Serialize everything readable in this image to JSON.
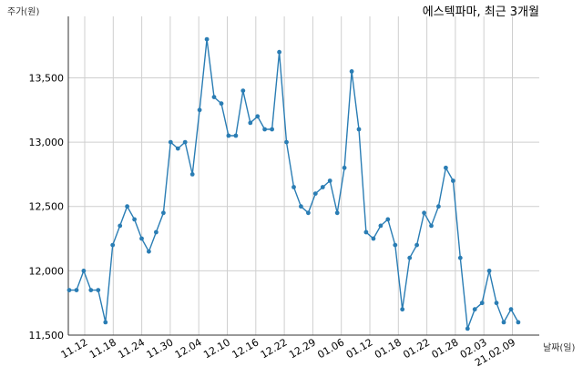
{
  "chart_data": {
    "type": "line",
    "title": "에스텍파마, 최근 3개월",
    "ylabel": "주가(원)",
    "xlabel": "날짜(일)",
    "ylim": [
      11500,
      13850
    ],
    "grid": true,
    "color": "#2a7db4",
    "x_ticks": [
      "11.12",
      "11.18",
      "11.24",
      "11.30",
      "12.04",
      "12.10",
      "12.16",
      "12.22",
      "12.29",
      "01.06",
      "01.12",
      "01.18",
      "01.22",
      "01.28",
      "02.03",
      "21.02.09"
    ],
    "y_ticks": [
      {
        "value": 11500,
        "label": "11,500"
      },
      {
        "value": 12000,
        "label": "12,000"
      },
      {
        "value": 12500,
        "label": "12,500"
      },
      {
        "value": 13000,
        "label": "13,000"
      },
      {
        "value": 13500,
        "label": "13,500"
      }
    ],
    "series": [
      {
        "values": [
          11850,
          11850,
          12000,
          11850,
          11850,
          11600,
          12200,
          12350,
          12500,
          12400,
          12250,
          12150,
          12300,
          12450,
          13000,
          12950,
          13000,
          12750,
          13250,
          13800,
          13350,
          13300,
          13050,
          13050,
          13400,
          13150,
          13200,
          13100,
          13100,
          13700,
          13000,
          12650,
          12500,
          12450,
          12600,
          12650,
          12700,
          12450,
          12800,
          13550,
          13100,
          12300,
          12250,
          12350,
          12400,
          12200,
          11700,
          12100,
          12200,
          12450,
          12350,
          12500,
          12800,
          12700,
          12100,
          11550,
          11700,
          11750,
          12000,
          11750,
          11600,
          11700,
          11600
        ]
      }
    ]
  }
}
